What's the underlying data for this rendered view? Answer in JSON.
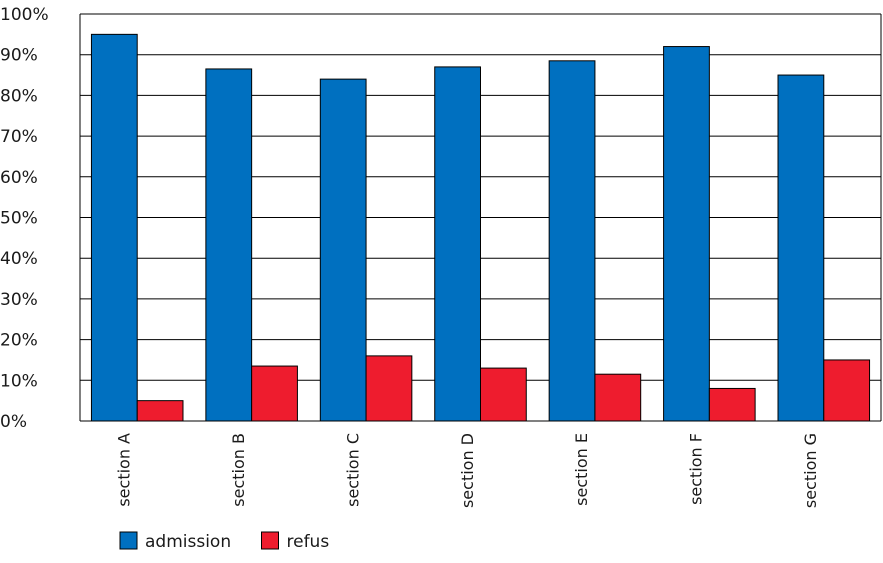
{
  "chart_data": {
    "type": "bar",
    "categories": [
      "section A",
      "section B",
      "section C",
      "section D",
      "section E",
      "section F",
      "section G"
    ],
    "series": [
      {
        "name": "admission",
        "color": "#0070c0",
        "values": [
          95,
          86.5,
          84,
          87,
          88.5,
          92,
          85
        ]
      },
      {
        "name": "refus",
        "color": "#ee1c2e",
        "values": [
          5,
          13.5,
          16,
          13,
          11.5,
          8,
          15
        ]
      }
    ],
    "ylim": [
      0,
      100
    ],
    "yticks": [
      "0%",
      "10%",
      "20%",
      "30%",
      "40%",
      "50%",
      "60%",
      "70%",
      "80%",
      "90%",
      "100%"
    ],
    "grid": true,
    "legend": "bottom-left"
  }
}
